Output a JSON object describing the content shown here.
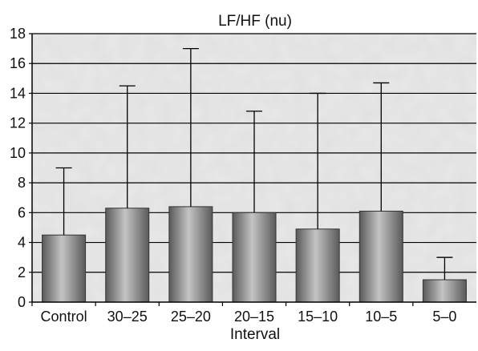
{
  "chart_data": {
    "type": "bar",
    "title": "LF/HF (nu)",
    "xlabel": "Interval",
    "ylabel": "",
    "categories": [
      "Control",
      "30–25",
      "25–20",
      "20–15",
      "15–10",
      "10–5",
      "5–0"
    ],
    "values": [
      4.5,
      6.3,
      6.4,
      6.0,
      4.9,
      6.1,
      1.5
    ],
    "error_upper": [
      9.0,
      14.5,
      17.0,
      12.8,
      14.0,
      14.7,
      3.0
    ],
    "ylim": [
      0,
      18
    ],
    "yticks": [
      0,
      2,
      4,
      6,
      8,
      10,
      12,
      14,
      16,
      18
    ],
    "grid": true,
    "legend": "none",
    "colors": {
      "bar_dark": "#5a5a5a",
      "bar_light": "#c4c4c4",
      "plot_background": "#e9e9e9",
      "gridline": "#000000",
      "error_bar": "#000000"
    }
  }
}
